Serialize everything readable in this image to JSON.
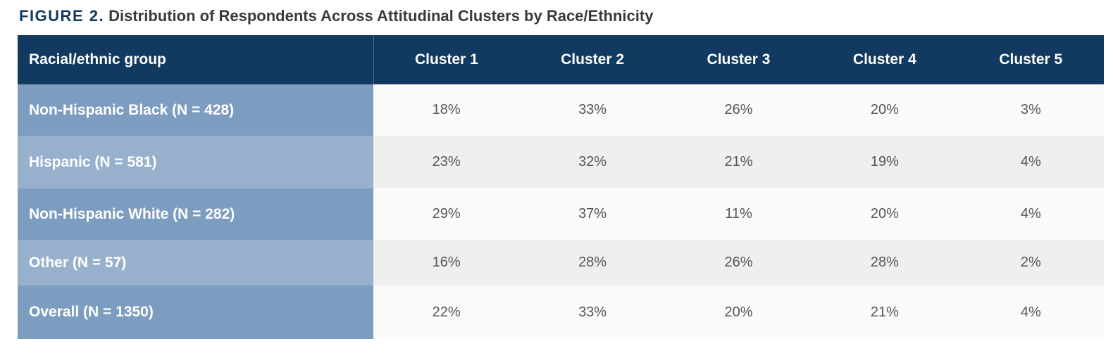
{
  "figure": {
    "label": "FIGURE 2.",
    "title": "Distribution of Respondents Across Attitudinal Clusters by Race/Ethnicity"
  },
  "table": {
    "header": [
      "Racial/ethnic group",
      "Cluster 1",
      "Cluster 2",
      "Cluster 3",
      "Cluster 4",
      "Cluster 5"
    ],
    "rows": [
      {
        "label": "Non-Hispanic Black (N = 428)",
        "values": [
          "18%",
          "33%",
          "26%",
          "20%",
          "3%"
        ]
      },
      {
        "label": "Hispanic (N = 581)",
        "values": [
          "23%",
          "32%",
          "21%",
          "19%",
          "4%"
        ]
      },
      {
        "label": "Non-Hispanic White (N = 282)",
        "values": [
          "29%",
          "37%",
          "11%",
          "20%",
          "4%"
        ]
      },
      {
        "label": "Other (N = 57)",
        "values": [
          "16%",
          "28%",
          "26%",
          "28%",
          "2%"
        ]
      },
      {
        "label": "Overall (N = 1350)",
        "values": [
          "22%",
          "33%",
          "20%",
          "21%",
          "4%"
        ]
      }
    ]
  },
  "chart_data": {
    "type": "table",
    "figure_label": "FIGURE 2.",
    "title": "Distribution of Respondents Across Attitudinal Clusters by Race/Ethnicity",
    "row_header": "Racial/ethnic group",
    "columns": [
      "Cluster 1",
      "Cluster 2",
      "Cluster 3",
      "Cluster 4",
      "Cluster 5"
    ],
    "rows": [
      {
        "group": "Non-Hispanic Black",
        "n": 428,
        "values_pct": [
          18,
          33,
          26,
          20,
          3
        ]
      },
      {
        "group": "Hispanic",
        "n": 581,
        "values_pct": [
          23,
          32,
          21,
          19,
          4
        ]
      },
      {
        "group": "Non-Hispanic White",
        "n": 282,
        "values_pct": [
          29,
          37,
          11,
          20,
          4
        ]
      },
      {
        "group": "Other",
        "n": 57,
        "values_pct": [
          16,
          28,
          26,
          28,
          2
        ]
      },
      {
        "group": "Overall",
        "n": 1350,
        "values_pct": [
          22,
          33,
          20,
          21,
          4
        ]
      }
    ]
  },
  "colors": {
    "header_bg": "#12395F",
    "label_bg_odd": "#7D9DC0",
    "label_bg_even": "#97B1CD",
    "data_bg_odd": "#FAFAFA",
    "data_bg_even": "#EFEFEF",
    "title_accent": "#12395F",
    "title_text": "#3A3A3A",
    "value_text": "#54565A"
  }
}
